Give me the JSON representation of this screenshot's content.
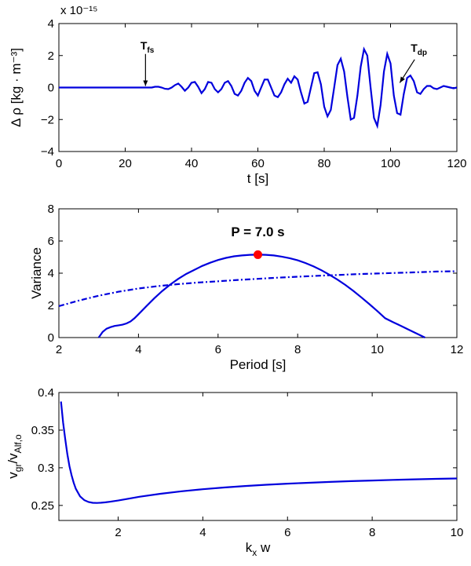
{
  "colors": {
    "series": "#0000dd",
    "marker": "#ff0000",
    "axes": "#000000",
    "background": "#ffffff"
  },
  "chart_data": [
    {
      "id": "density",
      "type": "line",
      "xlabel": "t [s]",
      "ylabel": "Δ ρ [kg · m⁻³]",
      "exponent_label": "x 10⁻¹⁵",
      "xlim": [
        0,
        120
      ],
      "ylim": [
        -4,
        4
      ],
      "xticks": [
        "0",
        "20",
        "40",
        "60",
        "80",
        "100",
        "120"
      ],
      "yticks": [
        "4",
        "2",
        "0",
        "−2",
        "−4"
      ],
      "grid": false,
      "annotations": [
        {
          "text": "T",
          "sub": "fs",
          "x": 26,
          "y": 2.0
        },
        {
          "text": "T",
          "sub": "dp",
          "x": 107.5,
          "y": 1.85
        }
      ],
      "series": [
        {
          "style": "solid",
          "x": [
            0,
            10,
            20,
            26,
            28,
            29,
            30,
            31,
            32,
            33,
            34,
            35,
            36,
            37,
            38,
            39,
            40,
            41,
            42,
            43,
            44,
            45,
            46,
            47,
            48,
            49,
            50,
            51,
            52,
            53,
            54,
            55,
            56,
            57,
            58,
            59,
            60,
            61,
            62,
            63,
            64,
            65,
            66,
            67,
            68,
            69,
            70,
            71,
            72,
            73,
            74,
            75,
            76,
            77,
            78,
            79,
            80,
            81,
            82,
            83,
            84,
            85,
            86,
            87,
            88,
            89,
            90,
            91,
            92,
            93,
            94,
            95,
            96,
            97,
            98,
            99,
            100,
            101,
            102,
            103,
            104,
            105,
            106,
            107,
            108,
            109,
            110,
            111,
            112,
            113,
            114,
            115,
            116,
            117,
            118,
            119,
            120
          ],
          "y": [
            0,
            0,
            0,
            0,
            0,
            0.05,
            0.05,
            0,
            -0.08,
            -0.1,
            0,
            0.15,
            0.25,
            0.05,
            -0.2,
            0,
            0.3,
            0.35,
            0.05,
            -0.35,
            -0.1,
            0.35,
            0.3,
            -0.1,
            -0.3,
            -0.1,
            0.3,
            0.4,
            0.1,
            -0.4,
            -0.5,
            -0.2,
            0.3,
            0.6,
            0.4,
            -0.2,
            -0.5,
            0,
            0.5,
            0.5,
            0,
            -0.5,
            -0.6,
            -0.3,
            0.2,
            0.55,
            0.3,
            0.7,
            0.5,
            -0.3,
            -1.0,
            -0.9,
            0,
            0.9,
            0.95,
            0.2,
            -1.2,
            -1.8,
            -1.4,
            0,
            1.4,
            1.8,
            1.0,
            -0.6,
            -2.0,
            -1.9,
            -0.5,
            1.3,
            2.4,
            2.0,
            0,
            -1.9,
            -2.4,
            -1.1,
            1.0,
            2.1,
            1.5,
            -0.5,
            -1.6,
            -1.7,
            -0.4,
            0.6,
            0.75,
            0.4,
            -0.3,
            -0.4,
            -0.1,
            0.1,
            0.1,
            -0.05,
            -0.1,
            0,
            0.1,
            0.05,
            0,
            -0.05,
            0
          ]
        }
      ]
    },
    {
      "id": "variance",
      "type": "line",
      "xlabel": "Period [s]",
      "ylabel": "Variance",
      "xlim": [
        2,
        12
      ],
      "ylim": [
        0,
        8
      ],
      "xticks": [
        "2",
        "4",
        "6",
        "8",
        "10",
        "12"
      ],
      "yticks": [
        "8",
        "6",
        "4",
        "2",
        "0"
      ],
      "grid": false,
      "annotations": [
        {
          "text": "P = 7.0 s",
          "x": 7.0,
          "y": 6.3
        }
      ],
      "marker": {
        "x": 7.0,
        "y": 5.15
      },
      "series": [
        {
          "style": "solid",
          "x": [
            3.0,
            3.1,
            3.2,
            3.3,
            3.4,
            3.5,
            3.6,
            3.7,
            3.8,
            3.9,
            4.0,
            4.2,
            4.4,
            4.6,
            4.8,
            5.0,
            5.2,
            5.4,
            5.6,
            5.8,
            6.0,
            6.2,
            6.4,
            6.6,
            6.8,
            7.0,
            7.2,
            7.4,
            7.6,
            7.8,
            8.0,
            8.2,
            8.4,
            8.6,
            8.8,
            9.0,
            9.2,
            9.4,
            9.6,
            9.8,
            10.0,
            10.2,
            10.4,
            10.6,
            10.8,
            11.0,
            11.2
          ],
          "y": [
            0,
            0.35,
            0.55,
            0.65,
            0.72,
            0.76,
            0.8,
            0.88,
            1.0,
            1.2,
            1.45,
            1.95,
            2.45,
            2.9,
            3.3,
            3.65,
            3.95,
            4.2,
            4.45,
            4.65,
            4.82,
            4.95,
            5.05,
            5.1,
            5.14,
            5.15,
            5.14,
            5.1,
            5.03,
            4.93,
            4.8,
            4.63,
            4.42,
            4.18,
            3.9,
            3.6,
            3.27,
            2.9,
            2.5,
            2.08,
            1.65,
            1.2,
            0.95,
            0.72,
            0.48,
            0.24,
            0
          ]
        },
        {
          "style": "dashdot",
          "x": [
            2,
            2.5,
            3,
            3.5,
            4,
            4.5,
            5,
            5.5,
            6,
            6.5,
            7,
            7.5,
            8,
            8.5,
            9,
            9.5,
            10,
            10.5,
            11,
            11.5,
            12
          ],
          "y": [
            1.95,
            2.3,
            2.6,
            2.85,
            3.05,
            3.2,
            3.32,
            3.42,
            3.5,
            3.58,
            3.65,
            3.72,
            3.78,
            3.84,
            3.89,
            3.94,
            3.98,
            4.02,
            4.06,
            4.1,
            4.12
          ]
        }
      ]
    },
    {
      "id": "group-velocity",
      "type": "line",
      "xlabel": "kₓ w",
      "ylabel": "v_gr/v_Alf,o",
      "xlim": [
        0.6,
        10
      ],
      "ylim": [
        0.23,
        0.4
      ],
      "xticks": [
        "2",
        "4",
        "6",
        "8",
        "10"
      ],
      "yticks": [
        "0.4",
        "0.35",
        "0.3",
        "0.25"
      ],
      "grid": false,
      "series": [
        {
          "style": "solid",
          "x": [
            0.65,
            0.7,
            0.75,
            0.8,
            0.85,
            0.9,
            0.95,
            1.0,
            1.1,
            1.2,
            1.3,
            1.4,
            1.5,
            1.6,
            1.7,
            1.8,
            2.0,
            2.2,
            2.5,
            3.0,
            3.5,
            4.0,
            4.5,
            5.0,
            5.5,
            6.0,
            6.5,
            7.0,
            7.5,
            8.0,
            8.5,
            9.0,
            9.5,
            10.0
          ],
          "y": [
            0.388,
            0.36,
            0.338,
            0.318,
            0.302,
            0.29,
            0.28,
            0.272,
            0.262,
            0.257,
            0.2545,
            0.2535,
            0.2533,
            0.2536,
            0.2541,
            0.2548,
            0.2565,
            0.2585,
            0.2615,
            0.2655,
            0.2688,
            0.2715,
            0.2738,
            0.2758,
            0.2775,
            0.2789,
            0.2801,
            0.2812,
            0.2822,
            0.2831,
            0.2839,
            0.2846,
            0.2853,
            0.2858
          ]
        }
      ]
    }
  ]
}
